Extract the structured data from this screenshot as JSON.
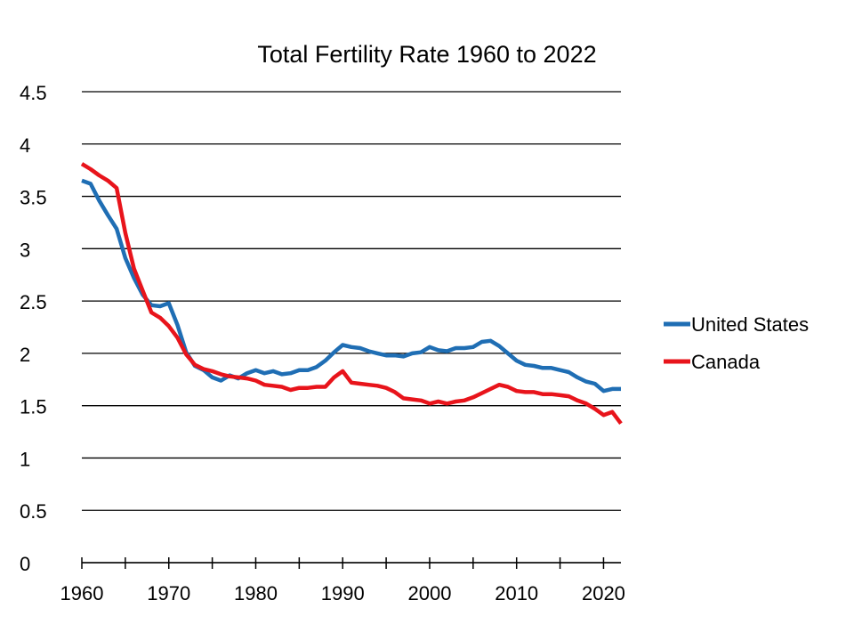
{
  "chart_data": {
    "type": "line",
    "title": "Total Fertility Rate 1960 to 2022",
    "xlabel": "",
    "ylabel": "",
    "xlim": [
      1960,
      2022
    ],
    "ylim": [
      0,
      4.5
    ],
    "x_ticks": [
      1960,
      1970,
      1980,
      1990,
      2000,
      2010,
      2020
    ],
    "y_ticks": [
      0,
      0.5,
      1,
      1.5,
      2,
      2.5,
      3,
      3.5,
      4,
      4.5
    ],
    "y_tick_labels": [
      "0",
      "0.5",
      "1",
      "1.5",
      "2",
      "2.5",
      "3",
      "3.5",
      "4",
      "4.5"
    ],
    "x_tick_labels": [
      "1960",
      "1970",
      "1980",
      "1990",
      "2000",
      "2010",
      "2020"
    ],
    "grid": "horizontal",
    "legend": "right",
    "x": [
      1960,
      1961,
      1962,
      1963,
      1964,
      1965,
      1966,
      1967,
      1968,
      1969,
      1970,
      1971,
      1972,
      1973,
      1974,
      1975,
      1976,
      1977,
      1978,
      1979,
      1980,
      1981,
      1982,
      1983,
      1984,
      1985,
      1986,
      1987,
      1988,
      1989,
      1990,
      1991,
      1992,
      1993,
      1994,
      1995,
      1996,
      1997,
      1998,
      1999,
      2000,
      2001,
      2002,
      2003,
      2004,
      2005,
      2006,
      2007,
      2008,
      2009,
      2010,
      2011,
      2012,
      2013,
      2014,
      2015,
      2016,
      2017,
      2018,
      2019,
      2020,
      2021,
      2022
    ],
    "series": [
      {
        "name": "United States",
        "color": "#1F6EB4",
        "values": [
          3.65,
          3.62,
          3.46,
          3.32,
          3.19,
          2.91,
          2.72,
          2.56,
          2.46,
          2.45,
          2.48,
          2.27,
          2.01,
          1.88,
          1.84,
          1.77,
          1.74,
          1.79,
          1.76,
          1.81,
          1.84,
          1.81,
          1.83,
          1.8,
          1.81,
          1.84,
          1.84,
          1.87,
          1.93,
          2.01,
          2.08,
          2.06,
          2.05,
          2.02,
          2.0,
          1.98,
          1.98,
          1.97,
          2.0,
          2.01,
          2.06,
          2.03,
          2.02,
          2.05,
          2.05,
          2.06,
          2.11,
          2.12,
          2.07,
          2.0,
          1.93,
          1.89,
          1.88,
          1.86,
          1.86,
          1.84,
          1.82,
          1.77,
          1.73,
          1.71,
          1.64,
          1.66,
          1.66
        ]
      },
      {
        "name": "Canada",
        "color": "#E8141B",
        "values": [
          3.81,
          3.76,
          3.7,
          3.65,
          3.58,
          3.15,
          2.81,
          2.6,
          2.39,
          2.34,
          2.26,
          2.15,
          1.99,
          1.89,
          1.85,
          1.83,
          1.8,
          1.78,
          1.77,
          1.76,
          1.74,
          1.7,
          1.69,
          1.68,
          1.65,
          1.67,
          1.67,
          1.68,
          1.68,
          1.77,
          1.83,
          1.72,
          1.71,
          1.7,
          1.69,
          1.67,
          1.63,
          1.57,
          1.56,
          1.55,
          1.52,
          1.54,
          1.52,
          1.54,
          1.55,
          1.58,
          1.62,
          1.66,
          1.7,
          1.68,
          1.64,
          1.63,
          1.63,
          1.61,
          1.61,
          1.6,
          1.59,
          1.55,
          1.52,
          1.47,
          1.41,
          1.44,
          1.33
        ]
      }
    ]
  }
}
